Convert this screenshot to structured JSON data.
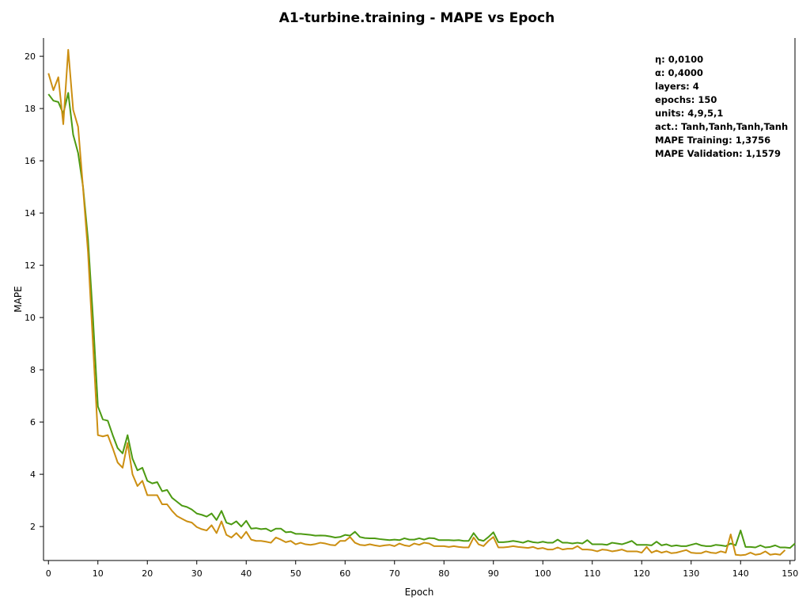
{
  "chart_data": {
    "type": "line",
    "title": "A1-turbine.training - MAPE vs Epoch",
    "xlabel": "Epoch",
    "ylabel": "MAPE",
    "xlim": [
      -1,
      151
    ],
    "ylim": [
      0.7,
      20.7
    ],
    "xticks": [
      0,
      10,
      20,
      30,
      40,
      50,
      60,
      70,
      80,
      90,
      100,
      110,
      120,
      130,
      140,
      150
    ],
    "yticks": [
      2,
      4,
      6,
      8,
      10,
      12,
      14,
      16,
      18,
      20
    ],
    "grid": false,
    "info": [
      "η: 0,0100",
      "α: 0,4000",
      "layers: 4",
      "epochs: 150",
      "units: 4,9,5,1",
      "act.: Tanh,Tanh,Tanh,Tanh",
      "MAPE Training: 1,3756",
      "MAPE Validation: 1,1579"
    ],
    "series": [
      {
        "color": "#4c9a12",
        "values": [
          18.55,
          18.3,
          18.25,
          17.8,
          18.6,
          17.0,
          16.3,
          15.0,
          13.0,
          10.0,
          6.6,
          6.1,
          6.05,
          5.5,
          5.0,
          4.8,
          5.5,
          4.6,
          4.15,
          4.25,
          3.75,
          3.65,
          3.7,
          3.35,
          3.4,
          3.1,
          2.95,
          2.8,
          2.75,
          2.65,
          2.5,
          2.45,
          2.38,
          2.5,
          2.25,
          2.6,
          2.15,
          2.08,
          2.2,
          2.0,
          2.22,
          1.92,
          1.94,
          1.9,
          1.92,
          1.82,
          1.92,
          1.92,
          1.78,
          1.8,
          1.72,
          1.72,
          1.7,
          1.68,
          1.65,
          1.66,
          1.65,
          1.62,
          1.58,
          1.6,
          1.68,
          1.65,
          1.8,
          1.6,
          1.56,
          1.55,
          1.55,
          1.52,
          1.5,
          1.48,
          1.5,
          1.48,
          1.55,
          1.5,
          1.5,
          1.55,
          1.5,
          1.56,
          1.55,
          1.48,
          1.48,
          1.48,
          1.47,
          1.48,
          1.45,
          1.45,
          1.75,
          1.5,
          1.45,
          1.6,
          1.78,
          1.4,
          1.4,
          1.42,
          1.45,
          1.42,
          1.38,
          1.45,
          1.4,
          1.38,
          1.42,
          1.38,
          1.38,
          1.5,
          1.38,
          1.38,
          1.35,
          1.38,
          1.35,
          1.48,
          1.32,
          1.32,
          1.32,
          1.3,
          1.38,
          1.35,
          1.32,
          1.38,
          1.45,
          1.3,
          1.3,
          1.3,
          1.28,
          1.42,
          1.28,
          1.32,
          1.25,
          1.28,
          1.25,
          1.25,
          1.3,
          1.35,
          1.28,
          1.25,
          1.25,
          1.3,
          1.28,
          1.25,
          1.35,
          1.28,
          1.85,
          1.22,
          1.22,
          1.2,
          1.28,
          1.2,
          1.22,
          1.28,
          1.2,
          1.2,
          1.18,
          1.35
        ]
      },
      {
        "color": "#cc8f12",
        "values": [
          19.35,
          18.7,
          19.2,
          17.4,
          20.25,
          17.95,
          17.3,
          14.95,
          12.5,
          9.0,
          5.5,
          5.45,
          5.5,
          5.0,
          4.45,
          4.25,
          5.2,
          4.0,
          3.55,
          3.75,
          3.2,
          3.2,
          3.2,
          2.85,
          2.85,
          2.6,
          2.4,
          2.3,
          2.2,
          2.15,
          1.98,
          1.9,
          1.85,
          2.05,
          1.75,
          2.2,
          1.68,
          1.58,
          1.75,
          1.55,
          1.8,
          1.5,
          1.45,
          1.45,
          1.42,
          1.38,
          1.58,
          1.5,
          1.4,
          1.45,
          1.32,
          1.38,
          1.32,
          1.3,
          1.33,
          1.38,
          1.35,
          1.3,
          1.28,
          1.45,
          1.45,
          1.6,
          1.38,
          1.3,
          1.28,
          1.32,
          1.28,
          1.25,
          1.28,
          1.3,
          1.25,
          1.35,
          1.28,
          1.25,
          1.35,
          1.3,
          1.38,
          1.35,
          1.25,
          1.25,
          1.25,
          1.22,
          1.25,
          1.22,
          1.2,
          1.2,
          1.58,
          1.32,
          1.25,
          1.45,
          1.6,
          1.2,
          1.2,
          1.22,
          1.25,
          1.22,
          1.2,
          1.18,
          1.22,
          1.15,
          1.18,
          1.12,
          1.12,
          1.2,
          1.12,
          1.15,
          1.15,
          1.25,
          1.12,
          1.12,
          1.1,
          1.05,
          1.12,
          1.1,
          1.05,
          1.08,
          1.12,
          1.05,
          1.05,
          1.05,
          1.0,
          1.22,
          1.0,
          1.08,
          1.0,
          1.05,
          0.98,
          1.0,
          1.05,
          1.1,
          1.0,
          0.98,
          0.98,
          1.05,
          1.0,
          0.98,
          1.05,
          1.0,
          1.7,
          0.92,
          0.9,
          0.92,
          1.0,
          0.92,
          0.95,
          1.05,
          0.92,
          0.95,
          0.92,
          1.1
        ]
      }
    ]
  }
}
